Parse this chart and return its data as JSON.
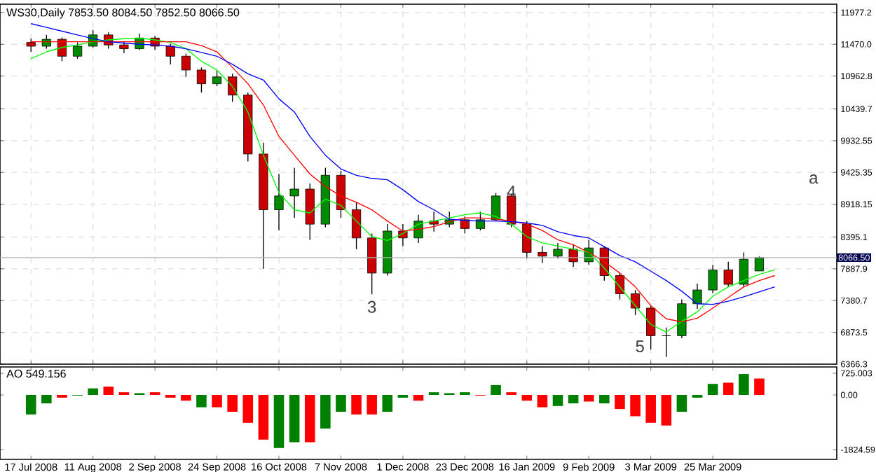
{
  "chart_data": [
    {
      "type": "candlestick",
      "title": "WS30,Daily 7853.50 8084.50 7852.50 8066.50",
      "categories": [
        null,
        null,
        null,
        null,
        null,
        null,
        null,
        null,
        null,
        null,
        null,
        null,
        null,
        null,
        null,
        null,
        null,
        null,
        null,
        null,
        null,
        null,
        null,
        null,
        null,
        null,
        null,
        null,
        null,
        null,
        null,
        null,
        null,
        null,
        null,
        null,
        null,
        null,
        null,
        null,
        null,
        null,
        null,
        null,
        null,
        null,
        null,
        null,
        null,
        null,
        null,
        null
      ],
      "ohlc": [
        [
          11500,
          11560,
          11350,
          11440
        ],
        [
          11440,
          11620,
          11400,
          11550
        ],
        [
          11550,
          11580,
          11200,
          11280
        ],
        [
          11280,
          11500,
          11240,
          11440
        ],
        [
          11440,
          11700,
          11420,
          11620
        ],
        [
          11620,
          11660,
          11400,
          11460
        ],
        [
          11460,
          11520,
          11330,
          11400
        ],
        [
          11400,
          11640,
          11380,
          11570
        ],
        [
          11570,
          11600,
          11380,
          11440
        ],
        [
          11440,
          11480,
          11150,
          11280
        ],
        [
          11280,
          11320,
          10950,
          11060
        ],
        [
          11060,
          11100,
          10700,
          10840
        ],
        [
          10840,
          11050,
          10800,
          10950
        ],
        [
          10950,
          11000,
          10550,
          10660
        ],
        [
          10660,
          10700,
          9600,
          9720
        ],
        [
          9720,
          9900,
          7890,
          8830
        ],
        [
          8830,
          9400,
          8500,
          9050
        ],
        [
          9050,
          9500,
          8700,
          9160
        ],
        [
          9160,
          9250,
          8350,
          8600
        ],
        [
          8600,
          9500,
          8550,
          9380
        ],
        [
          9380,
          9450,
          8700,
          8830
        ],
        [
          8830,
          8950,
          8200,
          8380
        ],
        [
          8380,
          8450,
          7480,
          7820
        ],
        [
          7820,
          8600,
          7780,
          8490
        ],
        [
          8490,
          8600,
          8250,
          8380
        ],
        [
          8380,
          8750,
          8300,
          8650
        ],
        [
          8650,
          8800,
          8480,
          8600
        ],
        [
          8600,
          8800,
          8550,
          8670
        ],
        [
          8670,
          8720,
          8450,
          8530
        ],
        [
          8530,
          8800,
          8500,
          8670
        ],
        [
          8670,
          9100,
          8650,
          9050
        ],
        [
          9050,
          9080,
          8550,
          8600
        ],
        [
          8600,
          8650,
          8050,
          8150
        ],
        [
          8150,
          8250,
          7980,
          8090
        ],
        [
          8090,
          8300,
          8050,
          8200
        ],
        [
          8200,
          8280,
          7920,
          8000
        ],
        [
          8000,
          8350,
          7950,
          8220
        ],
        [
          8220,
          8250,
          7700,
          7780
        ],
        [
          7780,
          7820,
          7400,
          7490
        ],
        [
          7490,
          7550,
          7150,
          7260
        ],
        [
          7260,
          7300,
          6600,
          6820
        ],
        [
          6820,
          6950,
          6480,
          6820
        ],
        [
          6820,
          7400,
          6780,
          7330
        ],
        [
          7330,
          7650,
          7250,
          7550
        ],
        [
          7550,
          7950,
          7500,
          7870
        ],
        [
          7870,
          8000,
          7600,
          7640
        ],
        [
          7640,
          8150,
          7600,
          8040
        ],
        [
          7853.5,
          8084.5,
          7852.5,
          8066.5
        ],
        null,
        null,
        null,
        null
      ],
      "series": [
        {
          "type": "line",
          "color": "#00ff00",
          "values": [
            11240,
            11350,
            11420,
            11460,
            11510,
            11540,
            11560,
            11570,
            11540,
            11500,
            11400,
            11200,
            11060,
            10800,
            10390,
            9700,
            9100,
            8830,
            8780,
            9000,
            8900,
            8650,
            8400,
            8340,
            8450,
            8600,
            8650,
            8700,
            8750,
            8780,
            8720,
            8600,
            8400,
            8300,
            8250,
            8200,
            8150,
            7900,
            7600,
            7300,
            7000,
            6880,
            7050,
            7200,
            7450,
            7600,
            7700,
            7800,
            7870,
            null,
            null,
            null
          ]
        },
        {
          "type": "line",
          "color": "#ff0000",
          "values": [
            11510,
            11510,
            11510,
            11510,
            11510,
            11510,
            11510,
            11510,
            11510,
            11510,
            11510,
            11450,
            11350,
            11100,
            10840,
            10500,
            10000,
            9700,
            9400,
            9200,
            9050,
            8950,
            8830,
            8650,
            8490,
            8520,
            8560,
            8640,
            8700,
            8700,
            8680,
            8650,
            8600,
            8500,
            8350,
            8270,
            8150,
            8000,
            7820,
            7600,
            7300,
            7090,
            7040,
            7100,
            7260,
            7430,
            7600,
            7700,
            7780,
            null,
            null,
            null
          ]
        },
        {
          "type": "line",
          "color": "#0000ff",
          "values": [
            11800,
            11740,
            11680,
            11620,
            11560,
            11510,
            11490,
            11470,
            11460,
            11440,
            11400,
            11340,
            11280,
            11150,
            11000,
            10900,
            10600,
            10390,
            10000,
            9700,
            9480,
            9380,
            9330,
            9310,
            9150,
            8960,
            8830,
            8680,
            8660,
            8650,
            8650,
            8640,
            8620,
            8580,
            8480,
            8420,
            8380,
            8240,
            8100,
            8000,
            7850,
            7700,
            7530,
            7330,
            7320,
            7370,
            7440,
            7520,
            7600,
            null,
            null,
            null
          ]
        }
      ],
      "ylim": [
        6366.3,
        12110
      ],
      "yticks": [
        {
          "value": 11977.25,
          "label": "11977.2"
        },
        {
          "value": 11470.05,
          "label": "11470.0"
        },
        {
          "value": 10962.85,
          "label": "10962.8"
        },
        {
          "value": 10439.75,
          "label": "10439.7"
        },
        9932.55,
        9425.35,
        8918.15,
        8395.1,
        7887.9,
        7380.7,
        6873.5,
        6366.3
      ],
      "ref_lines": [
        {
          "axis": "y",
          "value": 8066.5,
          "label": "8066.50"
        }
      ],
      "annotations": [
        {
          "text": "3",
          "y": 7480
        },
        "4",
        "5",
        "a"
      ],
      "grid": true,
      "tick_labels": "y"
    },
    {
      "type": "bar",
      "title": "AO 549.156",
      "categories": [
        "17 Jul 2008",
        null,
        null,
        null,
        "11 Aug 2008",
        null,
        null,
        null,
        "2 Sep 2008",
        null,
        null,
        null,
        "24 Sep 2008",
        null,
        null,
        null,
        "16 Oct 2008",
        null,
        null,
        null,
        "7 Nov 2008",
        null,
        null,
        null,
        "1 Dec 2008",
        null,
        null,
        null,
        "23 Dec 2008",
        null,
        null,
        null,
        "16 Jan 2009",
        null,
        null,
        null,
        "9 Feb 2009",
        null,
        null,
        null,
        "3 Mar 2009",
        null,
        null,
        null,
        "25 Mar 2009",
        null,
        null,
        null,
        null,
        null,
        null,
        null
      ],
      "values": [
        -650,
        -280,
        -90,
        -20,
        220,
        280,
        90,
        60,
        90,
        -90,
        -190,
        -410,
        -410,
        -560,
        -930,
        -1490,
        -1770,
        -1580,
        -1580,
        -1120,
        -560,
        -650,
        -650,
        -560,
        -90,
        -190,
        90,
        60,
        90,
        -20,
        330,
        90,
        -190,
        -410,
        -370,
        -280,
        -220,
        -280,
        -470,
        -710,
        -930,
        -1020,
        -560,
        -90,
        370,
        410,
        700,
        549,
        null,
        null,
        null,
        null
      ],
      "colors": [
        "#008000",
        "#008000",
        "#ff0000",
        "#008000",
        "#008000",
        "#ff0000",
        "#ff0000",
        "#008000",
        "#ff0000",
        "#ff0000",
        "#ff0000",
        "#008000",
        "#ff0000",
        "#ff0000",
        "#ff0000",
        "#ff0000",
        "#008000",
        "#008000",
        "#ff0000",
        "#008000",
        "#008000",
        "#ff0000",
        "#ff0000",
        "#008000",
        "#008000",
        "#ff0000",
        "#008000",
        "#008000",
        "#008000",
        "#ff0000",
        "#008000",
        "#ff0000",
        "#ff0000",
        "#ff0000",
        "#008000",
        "#008000",
        "#ff0000",
        "#008000",
        "#ff0000",
        "#ff0000",
        "#ff0000",
        "#ff0000",
        "#008000",
        "#008000",
        "#008000",
        "#ff0000",
        "#008000",
        "#ff0000",
        null,
        null,
        null,
        null
      ],
      "ylim": [
        -2150,
        935
      ],
      "yticks": [
        {
          "value": 725.003,
          "label": "725.003"
        },
        {
          "value": 0,
          "label": "0.00"
        },
        {
          "value": -1824.59,
          "label": "-1824.59"
        }
      ],
      "grid": false
    }
  ]
}
